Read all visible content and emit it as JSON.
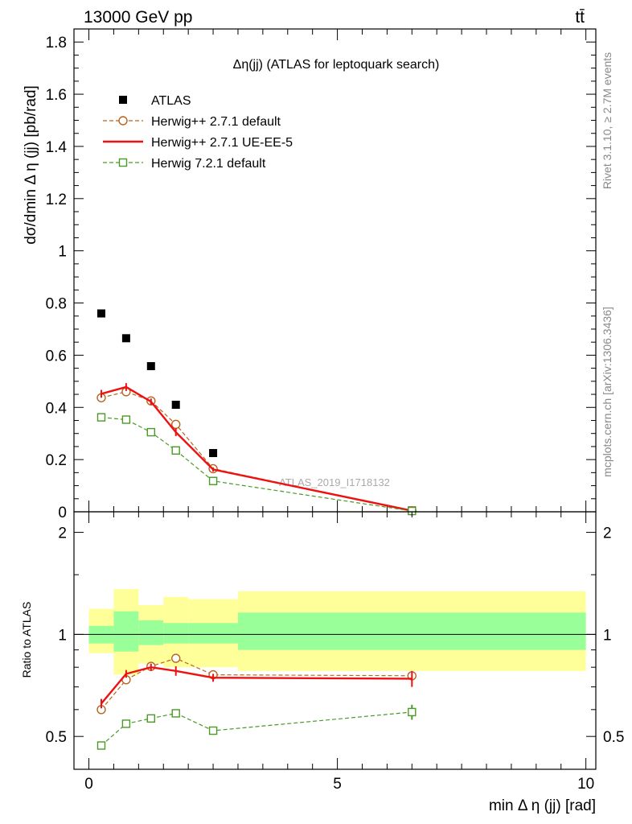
{
  "header": {
    "energy_label": "13000 GeV pp",
    "process_label": "tt̄"
  },
  "side_labels": {
    "rivet": "Rivet 3.1.10, ≥ 2.7M events",
    "mcplots": "mcplots.cern.ch [arXiv:1306.3436]"
  },
  "watermark": "ATLAS_2019_I1718132",
  "colors": {
    "atlas": "#000000",
    "herwigpp_default": "#b8631f",
    "herwigpp_ueee5": "#ee1111",
    "herwig7": "#4a9a26",
    "band_inner": "#99ff99",
    "band_outer": "#ffff99"
  },
  "chart_data": [
    {
      "type": "scatter",
      "title": "Δη(jj) (ATLAS for leptoquark search)",
      "ylabel": "dσ/dmin Δ η (jj) [pb/rad]",
      "xlim": [
        -0.3,
        10.2
      ],
      "ylim": [
        0,
        1.85
      ],
      "y_ticks": [
        0.2,
        0.4,
        0.6,
        0.8,
        1,
        1.2,
        1.4,
        1.6,
        1.8
      ],
      "legend_position": "top-left",
      "series": [
        {
          "name": "ATLAS",
          "marker": "filled-square",
          "x": [
            0.25,
            0.75,
            1.25,
            1.75,
            2.5,
            6.5
          ],
          "y": [
            0.76,
            0.665,
            0.558,
            0.41,
            0.225,
            0.005
          ]
        },
        {
          "name": "Herwig++ 2.7.1 default",
          "marker": "open-circle",
          "line": "dashed",
          "x": [
            0.25,
            0.75,
            1.25,
            1.75,
            2.5,
            6.5
          ],
          "y": [
            0.437,
            0.46,
            0.425,
            0.335,
            0.165,
            0.004
          ]
        },
        {
          "name": "Herwig++ 2.7.1 UE-EE-5",
          "marker": "none",
          "line": "solid",
          "x": [
            0.25,
            0.75,
            1.25,
            1.75,
            2.5,
            6.5
          ],
          "y": [
            0.452,
            0.478,
            0.422,
            0.305,
            0.162,
            0.004
          ],
          "yerr": [
            0.015,
            0.015,
            0.012,
            0.015,
            0.008,
            0.001
          ]
        },
        {
          "name": "Herwig 7.2.1 default",
          "marker": "open-square",
          "line": "dashed",
          "x": [
            0.25,
            0.75,
            1.25,
            1.75,
            2.5,
            6.5
          ],
          "y": [
            0.362,
            0.353,
            0.305,
            0.235,
            0.118,
            0.003
          ]
        }
      ]
    },
    {
      "type": "scatter",
      "ylabel": "Ratio to ATLAS",
      "xlabel": "min Δ η (jj) [rad]",
      "xlim": [
        -0.3,
        10.2
      ],
      "ylim": [
        0.4,
        2.3
      ],
      "x_ticks": [
        0,
        5,
        10
      ],
      "y_ticks": [
        0.5,
        1,
        2
      ],
      "reference_line": 1,
      "bands": {
        "edges": [
          0,
          0.5,
          1,
          1.5,
          2,
          3,
          10
        ],
        "inner": [
          [
            0.94,
            1.06
          ],
          [
            0.89,
            1.17
          ],
          [
            0.93,
            1.1
          ],
          [
            0.94,
            1.08
          ],
          [
            0.94,
            1.08
          ],
          [
            0.9,
            1.16
          ]
        ],
        "outer": [
          [
            0.88,
            1.19
          ],
          [
            0.76,
            1.36
          ],
          [
            0.82,
            1.22
          ],
          [
            0.8,
            1.29
          ],
          [
            0.8,
            1.27
          ],
          [
            0.78,
            1.34
          ]
        ]
      },
      "series": [
        {
          "name": "Herwig++ 2.7.1 default",
          "marker": "open-circle",
          "line": "dashed",
          "x": [
            0.25,
            0.75,
            1.25,
            1.75,
            2.5,
            6.5
          ],
          "y": [
            0.6,
            0.735,
            0.805,
            0.85,
            0.76,
            0.755
          ]
        },
        {
          "name": "Herwig++ 2.7.1 UE-EE-5",
          "marker": "none",
          "line": "solid",
          "x": [
            0.25,
            0.75,
            1.25,
            1.75,
            2.5,
            6.5
          ],
          "y": [
            0.625,
            0.765,
            0.8,
            0.78,
            0.745,
            0.74
          ],
          "yerr": [
            0.02,
            0.02,
            0.02,
            0.025,
            0.02,
            0.04
          ]
        },
        {
          "name": "Herwig 7.2.1 default",
          "marker": "open-square",
          "line": "dashed",
          "x": [
            0.25,
            0.75,
            1.25,
            1.75,
            2.5,
            6.5
          ],
          "y": [
            0.47,
            0.545,
            0.565,
            0.585,
            0.52,
            0.59
          ],
          "yerr": [
            0.01,
            0.01,
            0.01,
            0.015,
            0.01,
            0.03
          ]
        }
      ]
    }
  ]
}
